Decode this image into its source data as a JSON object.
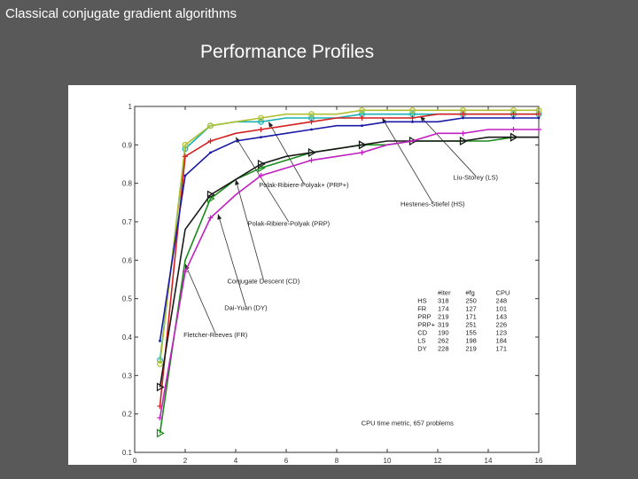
{
  "slide": {
    "title": "Classical conjugate gradient algorithms",
    "subtitle": "Performance Profiles"
  },
  "chart_data": {
    "type": "line",
    "xlim": [
      0,
      16
    ],
    "ylim": [
      0.1,
      1.0
    ],
    "xticks": [
      0,
      2,
      4,
      6,
      8,
      10,
      12,
      14,
      16
    ],
    "yticks": [
      0.1,
      0.2,
      0.3,
      0.4,
      0.5,
      0.6,
      0.7,
      0.8,
      0.9,
      1
    ],
    "grid": false,
    "caption": "CPU time metric, 657 problems",
    "x": [
      1,
      2,
      3,
      4,
      5,
      6,
      7,
      8,
      9,
      10,
      11,
      12,
      13,
      14,
      15,
      16
    ],
    "series": [
      {
        "name": "Liu-Storey (LS)",
        "color": "#19b2b2",
        "marker": "o",
        "values": [
          0.34,
          0.89,
          0.95,
          0.96,
          0.96,
          0.97,
          0.97,
          0.97,
          0.98,
          0.98,
          0.98,
          0.98,
          0.98,
          0.98,
          0.98,
          0.98
        ]
      },
      {
        "name": "Polak-Ribiere-Polyak+ (PRP+)",
        "color": "#b0c030",
        "marker": "o",
        "values": [
          0.33,
          0.9,
          0.95,
          0.96,
          0.97,
          0.98,
          0.98,
          0.98,
          0.99,
          0.99,
          0.99,
          0.99,
          0.99,
          0.99,
          0.99,
          0.99
        ]
      },
      {
        "name": "Hestenes-Stiefel (HS)",
        "color": "#d42020",
        "marker": "+",
        "values": [
          0.22,
          0.87,
          0.91,
          0.93,
          0.94,
          0.95,
          0.96,
          0.97,
          0.97,
          0.97,
          0.97,
          0.98,
          0.98,
          0.98,
          0.98,
          0.98
        ]
      },
      {
        "name": "Polak-Ribiere-Polyak (PRP)",
        "color": "#1a1aa6",
        "marker": "dot",
        "values": [
          0.39,
          0.82,
          0.88,
          0.91,
          0.92,
          0.93,
          0.94,
          0.95,
          0.95,
          0.96,
          0.96,
          0.96,
          0.97,
          0.97,
          0.97,
          0.97
        ]
      },
      {
        "name": "Conjugate Descent (CD)",
        "color": "#1a8a1a",
        "marker": "triangle",
        "values": [
          0.15,
          0.6,
          0.76,
          0.81,
          0.84,
          0.86,
          0.88,
          0.89,
          0.9,
          0.9,
          0.91,
          0.91,
          0.91,
          0.91,
          0.92,
          0.92
        ]
      },
      {
        "name": "Dai-Yuan (DY)",
        "color": "#1a1a1a",
        "marker": "triangle",
        "values": [
          0.27,
          0.68,
          0.77,
          0.81,
          0.85,
          0.87,
          0.88,
          0.89,
          0.9,
          0.91,
          0.91,
          0.91,
          0.91,
          0.92,
          0.92,
          0.92
        ]
      },
      {
        "name": "Fletcher-Reeves (FR)",
        "color": "#c020c0",
        "marker": "+",
        "values": [
          0.19,
          0.57,
          0.71,
          0.77,
          0.82,
          0.84,
          0.86,
          0.87,
          0.88,
          0.9,
          0.91,
          0.93,
          0.93,
          0.94,
          0.94,
          0.94
        ]
      }
    ],
    "annotations": [
      {
        "text": "Liu-Storey (LS)",
        "x": 13.5,
        "y": 0.81,
        "arrow_to": [
          11.3,
          0.975
        ]
      },
      {
        "text": "Hestenes-Stiefel (HS)",
        "x": 11.8,
        "y": 0.74,
        "arrow_to": [
          9.8,
          0.97
        ]
      },
      {
        "text": "Polak-Ribiere-Polyak+ (PRP+)",
        "x": 6.7,
        "y": 0.79,
        "arrow_to": [
          5.3,
          0.96
        ]
      },
      {
        "text": "Polak-Ribiere-Polyak (PRP)",
        "x": 6.1,
        "y": 0.69,
        "arrow_to": [
          4.0,
          0.92
        ]
      },
      {
        "text": "Conjugate Descent (CD)",
        "x": 5.1,
        "y": 0.54,
        "arrow_to": [
          4.0,
          0.81
        ]
      },
      {
        "text": "Dai-Yuan (DY)",
        "x": 4.4,
        "y": 0.47,
        "arrow_to": [
          3.3,
          0.72
        ]
      },
      {
        "text": "Fletcher-Reeves (FR)",
        "x": 3.2,
        "y": 0.4,
        "arrow_to": [
          2.0,
          0.59
        ]
      }
    ],
    "table": {
      "headers": [
        "",
        "#iter",
        "#fg",
        "CPU"
      ],
      "rows": [
        [
          "HS",
          "318",
          "250",
          "248"
        ],
        [
          "FR",
          "174",
          "127",
          "101"
        ],
        [
          "PRP",
          "219",
          "171",
          "143"
        ],
        [
          "PRP+",
          "319",
          "251",
          "226"
        ],
        [
          "CD",
          "190",
          "155",
          "123"
        ],
        [
          "LS",
          "262",
          "198",
          "184"
        ],
        [
          "DY",
          "228",
          "219",
          "171"
        ]
      ]
    }
  }
}
